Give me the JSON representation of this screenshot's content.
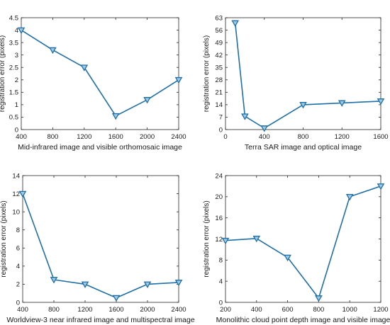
{
  "chart_data": [
    {
      "type": "line",
      "xlabel": "Mid-infrared image and visible orthomosaic image",
      "ylabel": "registration error (pixels)",
      "xlim": [
        400,
        2400
      ],
      "ylim": [
        0,
        4.5
      ],
      "xticks": [
        "400",
        "800",
        "1200",
        "1600",
        "2000",
        "2400"
      ],
      "yticks": [
        "0",
        "0.5",
        "1",
        "1.5",
        "2",
        "2.5",
        "3",
        "3.5",
        "4",
        "4.5"
      ],
      "series": [
        {
          "x": [
            400,
            800,
            1200,
            1600,
            2000,
            2400
          ],
          "y": [
            4.0,
            3.2,
            2.5,
            0.55,
            1.2,
            2.0
          ]
        }
      ],
      "marker": "downward-triangle",
      "color": "#1f6fa8",
      "grid": false
    },
    {
      "type": "line",
      "xlabel": "Terra SAR image and optical image",
      "ylabel": "registration error (pixels)",
      "xlim": [
        0,
        1600
      ],
      "ylim": [
        0,
        63
      ],
      "xticks": [
        "0",
        "400",
        "800",
        "1200",
        "1600"
      ],
      "yticks": [
        "0",
        "7",
        "14",
        "21",
        "28",
        "35",
        "42",
        "49",
        "56",
        "63"
      ],
      "series": [
        {
          "x": [
            100,
            200,
            400,
            800,
            1200,
            1600
          ],
          "y": [
            60,
            7.5,
            0.8,
            14,
            15,
            16
          ]
        }
      ],
      "marker": "downward-triangle",
      "color": "#1f6fa8",
      "grid": false
    },
    {
      "type": "line",
      "xlabel": "Worldview-3 near infrared image and multispectral image",
      "ylabel": "registration error (pixels)",
      "xlim": [
        400,
        2400
      ],
      "ylim": [
        0,
        14
      ],
      "xticks": [
        "400",
        "800",
        "1200",
        "1600",
        "2000",
        "2400"
      ],
      "yticks": [
        "0",
        "2",
        "4",
        "6",
        "8",
        "10",
        "12",
        "14"
      ],
      "series": [
        {
          "x": [
            400,
            800,
            1200,
            1600,
            2000,
            2400
          ],
          "y": [
            12,
            2.5,
            2.0,
            0.5,
            2.0,
            2.2
          ]
        }
      ],
      "marker": "downward-triangle",
      "color": "#1f6fa8",
      "grid": false
    },
    {
      "type": "line",
      "xlabel": "Monolithic cloud point depth image and visible image",
      "ylabel": "registration error (pixels)",
      "xlim": [
        200,
        1200
      ],
      "ylim": [
        0,
        24
      ],
      "xticks": [
        "200",
        "400",
        "600",
        "800",
        "1000",
        "1200"
      ],
      "yticks": [
        "0",
        "4",
        "8",
        "12",
        "16",
        "20",
        "24"
      ],
      "series": [
        {
          "x": [
            200,
            400,
            600,
            800,
            1000,
            1200
          ],
          "y": [
            11.7,
            12.1,
            8.5,
            0.8,
            20,
            22
          ]
        }
      ],
      "marker": "downward-triangle",
      "color": "#1f6fa8",
      "grid": false
    }
  ]
}
